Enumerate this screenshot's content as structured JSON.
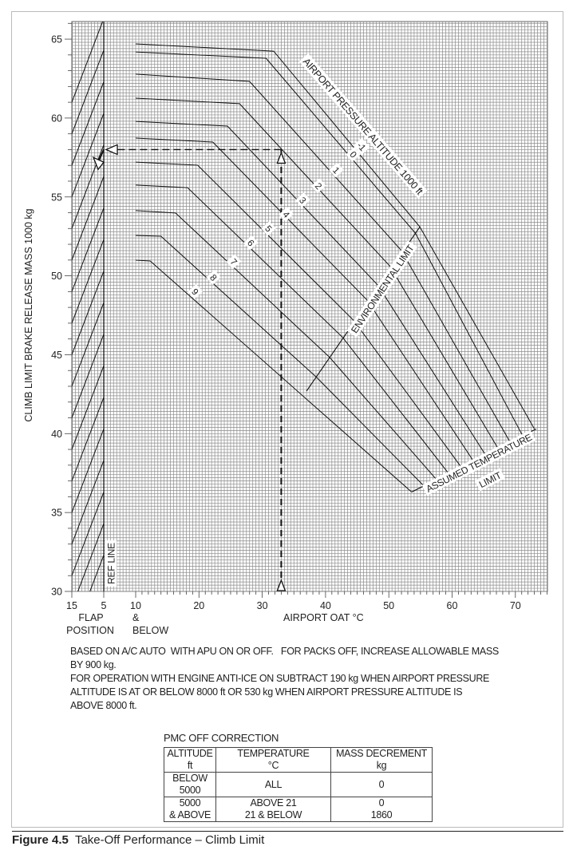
{
  "chart_data": {
    "type": "line",
    "ylabel": "CLIMB LIMIT BRAKE RELEASE MASS 1000 kg",
    "xlabel": "AIRPORT OAT °C",
    "flap_axis_label": [
      "FLAP",
      "POSITION"
    ],
    "below_label": [
      "&",
      "BELOW"
    ],
    "ylim": [
      30,
      66
    ],
    "oat_xlim": [
      10,
      75
    ],
    "yticks": [
      "30",
      "35",
      "40",
      "45",
      "50",
      "55",
      "60",
      "65"
    ],
    "oat_xticks": [
      "10",
      "20",
      "30",
      "40",
      "50",
      "60",
      "70"
    ],
    "flap_xticks": [
      "15",
      "5"
    ],
    "grid": true,
    "ref_line_label": "REF LINE",
    "series_title": "AIRPORT PRESSURE ALTITUDE  1000 ft",
    "series": [
      {
        "name": "-1",
        "points": [
          [
            10,
            64.7
          ],
          [
            31.8,
            64.24
          ],
          [
            54.9,
            53.1
          ],
          [
            73,
            40.3
          ]
        ],
        "label_at": [
          45.7,
          58.2
        ]
      },
      {
        "name": "0",
        "points": [
          [
            10,
            64.19
          ],
          [
            30.6,
            63.79
          ],
          [
            54.2,
            52.7
          ],
          [
            71.1,
            39.9
          ]
        ],
        "label_at": [
          44.4,
          57.7
        ]
      },
      {
        "name": "1",
        "points": [
          [
            10,
            62.78
          ],
          [
            28.0,
            62.32
          ],
          [
            52.0,
            51.6
          ],
          [
            69.1,
            39.5
          ]
        ],
        "label_at": [
          41.7,
          56.7
        ]
      },
      {
        "name": "2",
        "points": [
          [
            10,
            61.26
          ],
          [
            26.4,
            60.91
          ],
          [
            50.2,
            50.6
          ],
          [
            67.2,
            39.1
          ]
        ],
        "label_at": [
          38.9,
          55.7
        ]
      },
      {
        "name": "3",
        "points": [
          [
            10,
            59.79
          ],
          [
            24.5,
            59.49
          ],
          [
            48.3,
            49.4
          ],
          [
            65.2,
            38.7
          ]
        ],
        "label_at": [
          36.4,
          54.8
        ]
      },
      {
        "name": "4",
        "points": [
          [
            10,
            58.73
          ],
          [
            22.2,
            58.48
          ],
          [
            46.6,
            48.45
          ],
          [
            63.3,
            38.3
          ]
        ],
        "label_at": [
          33.8,
          53.9
        ]
      },
      {
        "name": "5",
        "points": [
          [
            10,
            57.21
          ],
          [
            19.8,
            57.01
          ],
          [
            44.5,
            47.15
          ],
          [
            61.4,
            37.9
          ]
        ],
        "label_at": [
          31.0,
          53.0
        ]
      },
      {
        "name": "6",
        "points": [
          [
            10,
            55.75
          ],
          [
            18.2,
            55.59
          ],
          [
            42.7,
            46.1
          ],
          [
            59.4,
            37.5
          ]
        ],
        "label_at": [
          28.2,
          52.1
        ]
      },
      {
        "name": "7",
        "points": [
          [
            10,
            54.13
          ],
          [
            16.3,
            53.98
          ],
          [
            40.6,
            44.85
          ],
          [
            57.5,
            37.1
          ]
        ],
        "label_at": [
          25.5,
          50.9
        ]
      },
      {
        "name": "8",
        "points": [
          [
            10,
            52.56
          ],
          [
            14.0,
            52.51
          ],
          [
            38.5,
            43.6
          ],
          [
            55.5,
            36.7
          ]
        ],
        "label_at": [
          22.3,
          49.9
        ]
      },
      {
        "name": "9",
        "points": [
          [
            10,
            50.99
          ],
          [
            12.3,
            50.94
          ],
          [
            53.6,
            36.3
          ]
        ],
        "label_at": [
          19.4,
          49.0
        ]
      }
    ],
    "environmental_limit": {
      "label": "ENVIRONMENTAL LIMIT",
      "points": [
        [
          37,
          42.7
        ],
        [
          54.9,
          53.1
        ]
      ]
    },
    "assumed_temperature_limit": {
      "label": [
        "ASSUMED TEMPERATURE",
        "LIMIT"
      ],
      "points": [
        [
          53.6,
          36.3
        ],
        [
          73.3,
          40.3
        ]
      ]
    },
    "flap_guide_lines": [
      [
        [
          15,
          61.0
        ],
        [
          5,
          66.3
        ]
      ],
      [
        [
          15,
          59.0
        ],
        [
          5,
          64.3
        ]
      ],
      [
        [
          15,
          57.0
        ],
        [
          5,
          62.3
        ]
      ],
      [
        [
          15,
          55.0
        ],
        [
          5,
          60.3
        ]
      ],
      [
        [
          15,
          53.0
        ],
        [
          5,
          58.3
        ]
      ],
      [
        [
          15,
          51.0
        ],
        [
          5,
          56.3
        ]
      ],
      [
        [
          15,
          49.0
        ],
        [
          5,
          54.3
        ]
      ],
      [
        [
          15,
          47.0
        ],
        [
          5,
          52.3
        ]
      ],
      [
        [
          15,
          45.0
        ],
        [
          5,
          50.3
        ]
      ],
      [
        [
          15,
          43.0
        ],
        [
          5,
          48.3
        ]
      ],
      [
        [
          15,
          41.0
        ],
        [
          5,
          46.3
        ]
      ],
      [
        [
          15,
          39.0
        ],
        [
          5,
          44.3
        ]
      ],
      [
        [
          15,
          37.0
        ],
        [
          5,
          42.3
        ]
      ],
      [
        [
          15,
          35.0
        ],
        [
          5,
          40.3
        ]
      ],
      [
        [
          15,
          33.0
        ],
        [
          5,
          38.3
        ]
      ],
      [
        [
          15,
          31.0
        ],
        [
          5,
          36.3
        ]
      ],
      [
        [
          15,
          29.0
        ],
        [
          5,
          34.3
        ]
      ],
      [
        [
          15,
          27.0
        ],
        [
          5,
          32.3
        ]
      ]
    ],
    "example": {
      "oat": 33,
      "mass_at_ref_line": 58.0,
      "flap": 7,
      "result_mass": 57.1
    }
  },
  "notes": [
    "BASED ON A/C AUTO  WITH APU ON OR OFF.   FOR PACKS OFF, INCREASE ALLOWABLE MASS",
    "BY 900 kg.",
    "FOR OPERATION WITH ENGINE ANTI-ICE ON SUBTRACT 190 kg WHEN AIRPORT PRESSURE",
    "ALTITUDE IS AT OR BELOW 8000 ft OR 530 kg WHEN AIRPORT PRESSURE ALTITUDE IS",
    "ABOVE 8000 ft."
  ],
  "pmc_table": {
    "title": "PMC OFF CORRECTION",
    "headers": [
      [
        "ALTITUDE",
        "ft"
      ],
      [
        "TEMPERATURE",
        "°C"
      ],
      [
        "MASS DECREMENT",
        "kg"
      ]
    ],
    "rows": [
      {
        "altitude": [
          "BELOW 5000"
        ],
        "temperature": [
          "ALL"
        ],
        "decrement": [
          "0"
        ]
      },
      {
        "altitude": [
          "5000",
          "& ABOVE"
        ],
        "temperature": [
          "ABOVE 21",
          "21 & BELOW"
        ],
        "decrement": [
          "0",
          "1860"
        ]
      }
    ]
  },
  "caption": {
    "number": "Figure 4.5",
    "title": "Take-Off Performance – Climb Limit"
  }
}
